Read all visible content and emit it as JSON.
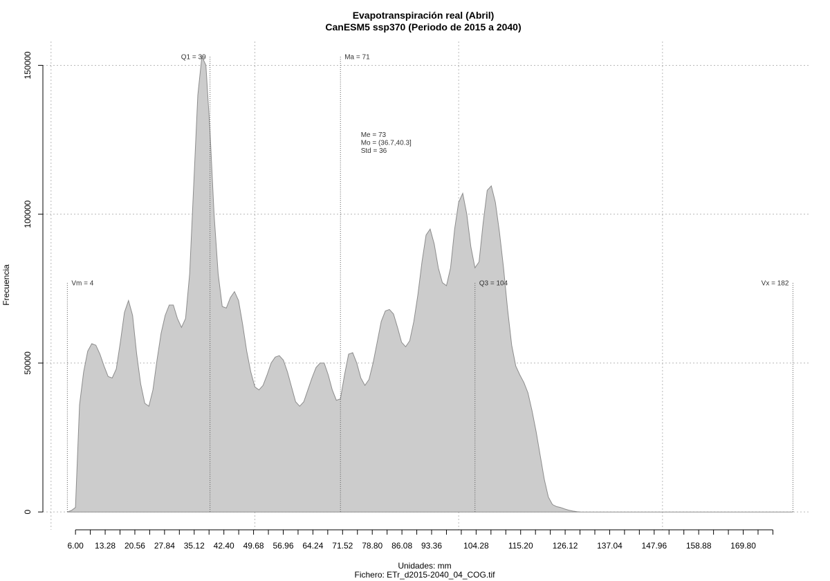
{
  "chart_data": {
    "type": "area",
    "title": "Evapotranspiración real (Abril)",
    "subtitle": "CanESM5 ssp370 (Periodo de 2015 a 2040)",
    "xlabel": "Unidades: mm",
    "footer": "Fichero: ETr_d2015-2040_04_COG.tif",
    "ylabel": "Frecuencia",
    "xlim": [
      -2,
      186
    ],
    "ylim": [
      -6000,
      158000
    ],
    "grid": true,
    "fill_color": "#cccccc",
    "line_color": "#8c8c8c",
    "x_ticks": [
      6.0,
      9.64,
      13.28,
      16.92,
      20.56,
      24.2,
      27.84,
      31.48,
      35.12,
      38.76,
      42.4,
      46.04,
      49.68,
      53.32,
      56.96,
      60.6,
      64.24,
      67.88,
      71.52,
      75.16,
      78.8,
      82.44,
      86.08,
      89.72,
      93.36,
      97.0,
      100.64,
      104.28,
      107.92,
      111.56,
      115.2,
      118.84,
      122.48,
      126.12,
      129.76,
      133.4,
      137.04,
      140.68,
      144.32,
      147.96,
      151.6,
      155.24,
      158.88,
      162.52,
      166.16,
      169.8,
      173.44,
      177.08
    ],
    "x_tick_labels": [
      "6.00",
      "13.28",
      "20.56",
      "27.84",
      "35.12",
      "42.40",
      "49.68",
      "56.96",
      "64.24",
      "71.52",
      "78.80",
      "86.08",
      "93.36",
      "104.28",
      "115.20",
      "126.12",
      "137.04",
      "147.96",
      "158.88",
      "169.80"
    ],
    "x_labeled_values": [
      6.0,
      13.28,
      20.56,
      27.84,
      35.12,
      42.4,
      49.68,
      56.96,
      64.24,
      71.52,
      78.8,
      86.08,
      93.36,
      104.28,
      115.2,
      126.12,
      137.04,
      147.96,
      158.88,
      169.8
    ],
    "x_grid": [
      0,
      50,
      100,
      150
    ],
    "y_ticks": [
      0,
      50000,
      100000,
      150000
    ],
    "y_tick_labels": [
      "0",
      "50000",
      "100000",
      "150000"
    ],
    "x": [
      4,
      5,
      6,
      7,
      8,
      9,
      10,
      11,
      12,
      13,
      14,
      15,
      16,
      17,
      18,
      19,
      20,
      21,
      22,
      23,
      24,
      25,
      26,
      27,
      28,
      29,
      30,
      31,
      32,
      33,
      34,
      35,
      36,
      37,
      38,
      39,
      40,
      41,
      42,
      43,
      44,
      45,
      46,
      47,
      48,
      49,
      50,
      51,
      52,
      53,
      54,
      55,
      56,
      57,
      58,
      59,
      60,
      61,
      62,
      63,
      64,
      65,
      66,
      67,
      68,
      69,
      70,
      71,
      72,
      73,
      74,
      75,
      76,
      77,
      78,
      79,
      80,
      81,
      82,
      83,
      84,
      85,
      86,
      87,
      88,
      89,
      90,
      91,
      92,
      93,
      94,
      95,
      96,
      97,
      98,
      99,
      100,
      101,
      102,
      103,
      104,
      105,
      106,
      107,
      108,
      109,
      110,
      111,
      112,
      113,
      114,
      115,
      116,
      117,
      118,
      119,
      120,
      121,
      122,
      123,
      124,
      125,
      126,
      127,
      128,
      129,
      130,
      131,
      132,
      133,
      134,
      135,
      136,
      137,
      138,
      139,
      140,
      141,
      142,
      144,
      146,
      150,
      160,
      170,
      180,
      182
    ],
    "y": [
      0,
      500,
      1500,
      36000,
      47000,
      54000,
      56500,
      56000,
      53000,
      49000,
      45500,
      45000,
      48000,
      57000,
      67000,
      71000,
      66000,
      53000,
      43000,
      36500,
      35500,
      41000,
      51000,
      60000,
      66000,
      69500,
      69500,
      65000,
      62000,
      65000,
      80000,
      110000,
      140000,
      153000,
      150000,
      128000,
      100000,
      80000,
      69000,
      68500,
      72000,
      74000,
      71000,
      63000,
      54000,
      47000,
      42000,
      41000,
      42500,
      46000,
      50000,
      52000,
      52500,
      51000,
      47000,
      42000,
      37000,
      35500,
      37000,
      41000,
      45000,
      48500,
      50000,
      50000,
      46000,
      41000,
      37500,
      38000,
      46000,
      53000,
      53500,
      50000,
      45000,
      42500,
      44500,
      50000,
      57000,
      64000,
      67500,
      68000,
      66500,
      62000,
      57000,
      55500,
      57500,
      64000,
      73000,
      84000,
      93000,
      95000,
      90000,
      82000,
      77000,
      76000,
      82000,
      95000,
      104000,
      107000,
      100000,
      89000,
      82000,
      84000,
      97000,
      108000,
      109500,
      104000,
      94000,
      82000,
      68000,
      56000,
      49000,
      46000,
      43500,
      40000,
      34000,
      27000,
      19000,
      11000,
      5000,
      2500,
      1800,
      1500,
      1000,
      600,
      300,
      100,
      0,
      0,
      0,
      0,
      0,
      0,
      0,
      0,
      0,
      0,
      0,
      0,
      0,
      0,
      0,
      0,
      0,
      0,
      0,
      0
    ],
    "annotations": [
      {
        "id": "vm",
        "label": "Vm = 4",
        "x": 4,
        "line_top": 77000,
        "label_side": "right"
      },
      {
        "id": "q1",
        "label": "Q1 = 39",
        "x": 39,
        "line_top": 153000,
        "label_side": "left"
      },
      {
        "id": "ma",
        "label": "Ma = 71",
        "x": 71,
        "line_top": 153000,
        "label_side": "right"
      },
      {
        "id": "q3",
        "label": "Q3 = 104",
        "x": 104,
        "line_top": 77000,
        "label_side": "right"
      },
      {
        "id": "vx",
        "label": "Vx = 182",
        "x": 182,
        "line_top": 77000,
        "label_side": "left"
      }
    ],
    "stats": {
      "anchor_x": 76,
      "anchor_y": 126000,
      "lines": [
        "Me = 73",
        "Mo = (36.7,40.3]",
        "Std = 36"
      ]
    }
  }
}
